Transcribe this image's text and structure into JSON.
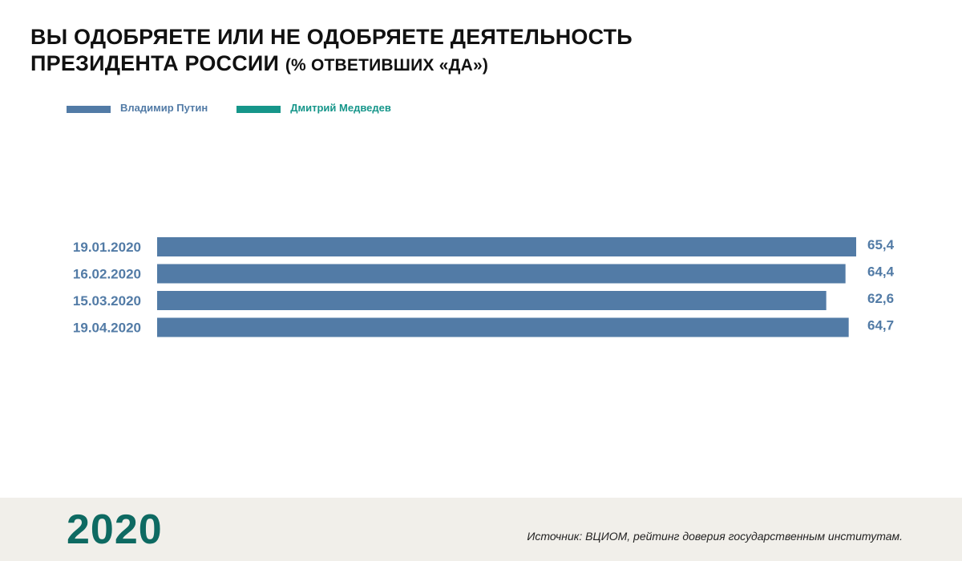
{
  "title": {
    "line1": "ВЫ ОДОБРЯЕТЕ ИЛИ НЕ ОДОБРЯЕТЕ ДЕЯТЕЛЬНОСТЬ",
    "line2_main": "ПРЕЗИДЕНТА РОССИИ",
    "line2_paren": "(% ОТВЕТИВШИХ «ДА»)"
  },
  "legend": [
    {
      "label": "Владимир Путин",
      "color": "#527ba6"
    },
    {
      "label": "Дмитрий Медведев",
      "color": "#16968a"
    }
  ],
  "footer": {
    "year": "2020",
    "source": "Источник: ВЦИОМ, рейтинг доверия государственным институтам."
  },
  "colors": {
    "bar": "#527ba6",
    "label": "#527ba6",
    "year": "#0e6a62",
    "footer_bg": "#f1efea"
  },
  "chart_data": {
    "type": "bar",
    "orientation": "horizontal",
    "categories": [
      "19.01.2020",
      "16.02.2020",
      "15.03.2020",
      "19.04.2020"
    ],
    "series": [
      {
        "name": "Владимир Путин",
        "values": [
          65.4,
          64.4,
          62.6,
          64.7
        ],
        "labels": [
          "65,4",
          "64,4",
          "62,6",
          "64,7"
        ]
      }
    ],
    "xlim": [
      0,
      65.4
    ],
    "grid": false,
    "legend_position": "top-left"
  }
}
